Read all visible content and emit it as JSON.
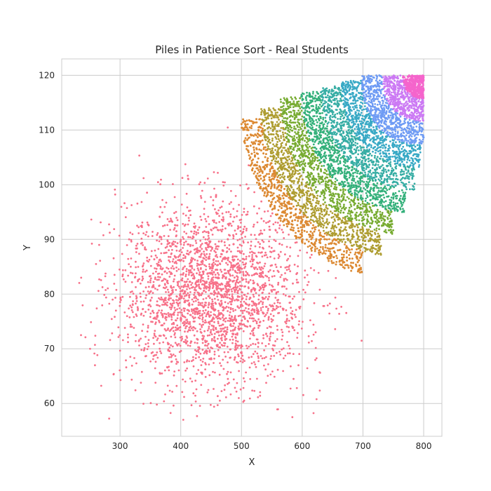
{
  "chart_data": {
    "type": "scatter",
    "title": "Piles in Patience Sort - Real Students",
    "xlabel": "X",
    "ylabel": "Y",
    "xlim": [
      204,
      830
    ],
    "ylim": [
      54,
      123
    ],
    "xticks": [
      300,
      400,
      500,
      600,
      700,
      800
    ],
    "yticks": [
      60,
      70,
      80,
      90,
      100,
      110,
      120
    ],
    "grid": true,
    "legend": "none",
    "point_size": 1.4,
    "series": [
      {
        "color": "#f77189",
        "density": 2600,
        "anchor_x": 450,
        "anchor_y": 80,
        "band": [
          0,
          1
        ],
        "x_range": [
          232,
          700
        ],
        "y_range": [
          57,
          115
        ]
      },
      {
        "color": "#dc8932",
        "density": 1200,
        "band": [
          1,
          2
        ],
        "x_range": [
          450,
          700
        ],
        "y_range": [
          77,
          112
        ]
      },
      {
        "color": "#ae9d31",
        "density": 1000,
        "band": [
          2,
          3
        ],
        "x_range": [
          505,
          730
        ],
        "y_range": [
          84,
          114
        ]
      },
      {
        "color": "#77ab31",
        "density": 800,
        "band": [
          3,
          4
        ],
        "x_range": [
          545,
          750
        ],
        "y_range": [
          87,
          116
        ]
      },
      {
        "color": "#33b07a",
        "density": 800,
        "band": [
          4,
          5
        ],
        "x_range": [
          585,
          770
        ],
        "y_range": [
          89,
          117
        ]
      },
      {
        "color": "#36ada4",
        "density": 700,
        "band": [
          5,
          6
        ],
        "x_range": [
          625,
          785
        ],
        "y_range": [
          91,
          118
        ]
      },
      {
        "color": "#38a9c5",
        "density": 650,
        "band": [
          6,
          7
        ],
        "x_range": [
          655,
          795
        ],
        "y_range": [
          93,
          119
        ]
      },
      {
        "color": "#6e9bf4",
        "density": 600,
        "band": [
          7,
          8
        ],
        "x_range": [
          685,
          800
        ],
        "y_range": [
          96,
          120
        ]
      },
      {
        "color": "#cc7af4",
        "density": 500,
        "band": [
          8,
          9
        ],
        "x_range": [
          705,
          800
        ],
        "y_range": [
          102,
          120
        ]
      },
      {
        "color": "#f565cc",
        "density": 450,
        "band": [
          9,
          10
        ],
        "x_range": [
          725,
          800
        ],
        "y_range": [
          106,
          120
        ]
      }
    ]
  }
}
